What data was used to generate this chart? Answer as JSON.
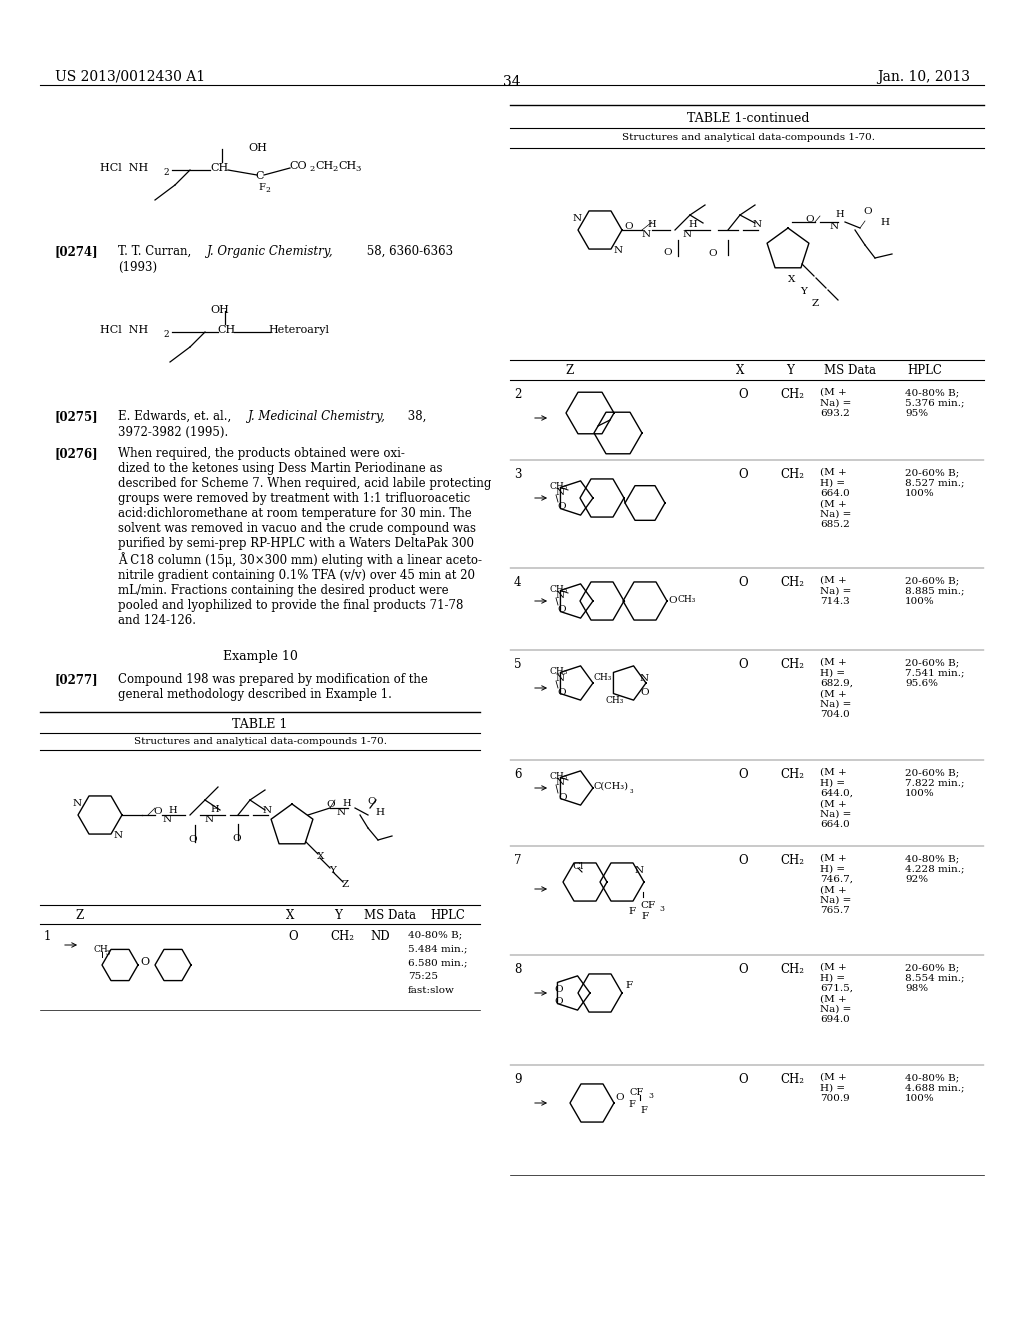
{
  "bg": "#ffffff",
  "fw": 10.24,
  "fh": 13.2,
  "dpi": 100,
  "header_left": "US 2013/0012430 A1",
  "header_right": "Jan. 10, 2013",
  "page_num": "34",
  "para_0274": "[0274]    T. T. Curran, J. Organic Chemistry, 58, 6360-6363\n    (1993)",
  "para_0275": "[0275]    E. Edwards, et. al., J. Medicinal Chemistry, 38,\n    3972-3982 (1995).",
  "para_0276_label": "[0276]",
  "para_0276": "When required, the products obtained were oxi-\ndized to the ketones using Dess Martin Periodinane as\ndescribed for Scheme 7. When required, acid labile protecting\ngroups were removed by treatment with 1:1 trifluoroacetic\nacid:dichloromethane at room temperature for 30 min. The\nsolvent was removed in vacuo and the crude compound was\npurified by semi-prep RP-HPLC with a Waters DeltaPak 300\nÅ C18 column (15μ, 30×300 mm) eluting with a linear aceto-\nnitrile gradient containing 0.1% TFA (v/v) over 45 min at 20\nmL/min. Fractions containing the desired product were\npooled and lyophilized to provide the final products 71-78\nand 124-126.",
  "example10": "Example 10",
  "para_0277_label": "[0277]",
  "para_0277": "Compound 198 was prepared by modification of the\ngeneral methodology described in Example 1.",
  "table1_title": "TABLE 1",
  "table1_subtitle": "Structures and analytical data-compounds 1-70.",
  "table1c_title": "TABLE 1-continued",
  "table1c_subtitle": "Structures and analytical data-compounds 1-70.",
  "col_headers": [
    "Z",
    "X",
    "Y",
    "MS Data",
    "HPLC"
  ],
  "rows": [
    {
      "num": "1",
      "x": "O",
      "y": "CH₂",
      "ms": "ND",
      "hplc": "40-80% B;\n5.484 min.;\n6.580 min.;\n75:25\nfast:slow"
    },
    {
      "num": "2",
      "x": "O",
      "y": "CH₂",
      "ms": "(M +\nNa) =\n693.2",
      "hplc": "40-80% B;\n5.376 min.;\n95%"
    },
    {
      "num": "3",
      "x": "O",
      "y": "CH₂",
      "ms": "(M +\nH) =\n664.0\n(M +\nNa) =\n685.2",
      "hplc": "20-60% B;\n8.527 min.;\n100%"
    },
    {
      "num": "4",
      "x": "O",
      "y": "CH₂",
      "ms": "(M +\nNa) =\n714.3",
      "hplc": "20-60% B;\n8.885 min.;\n100%"
    },
    {
      "num": "5",
      "x": "O",
      "y": "CH₂",
      "ms": "(M +\nH) =\n682.9,\n(M +\nNa) =\n704.0",
      "hplc": "20-60% B;\n7.541 min.;\n95.6%"
    },
    {
      "num": "6",
      "x": "O",
      "y": "CH₂",
      "ms": "(M +\nH) =\n644.0,\n(M +\nNa) =\n664.0",
      "hplc": "20-60% B;\n7.822 min.;\n100%"
    },
    {
      "num": "7",
      "x": "O",
      "y": "CH₂",
      "ms": "(M +\nH) =\n746.7,\n(M +\nNa) =\n765.7",
      "hplc": "40-80% B;\n4.228 min.;\n92%"
    },
    {
      "num": "8",
      "x": "O",
      "y": "CH₂",
      "ms": "(M +\nH) =\n671.5,\n(M +\nNa) =\n694.0",
      "hplc": "20-60% B;\n8.554 min.;\n98%"
    },
    {
      "num": "9",
      "x": "O",
      "y": "CH₂",
      "ms": "(M +\nH) =\n700.9",
      "hplc": "40-80% B;\n4.688 min.;\n100%"
    }
  ]
}
